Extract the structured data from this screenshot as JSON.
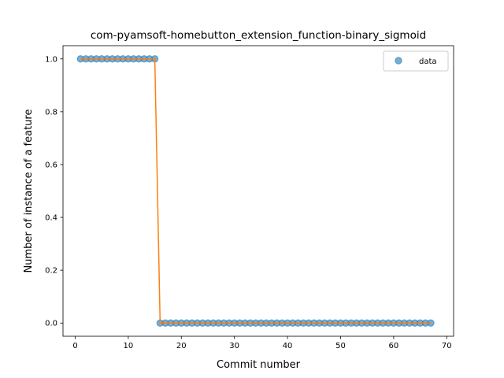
{
  "chart_data": {
    "type": "scatter",
    "title": "com-pyamsoft-homebutton_extension_function-binary_sigmoid",
    "xlabel": "Commit number",
    "ylabel": "Number of instance of a feature",
    "xlim": [
      -2.3,
      71.3
    ],
    "ylim": [
      -0.05,
      1.05
    ],
    "xticks": [
      0,
      10,
      20,
      30,
      40,
      50,
      60,
      70
    ],
    "xtick_labels": [
      "0",
      "10",
      "20",
      "30",
      "40",
      "50",
      "60",
      "70"
    ],
    "yticks": [
      0.0,
      0.2,
      0.4,
      0.6,
      0.8,
      1.0
    ],
    "ytick_labels": [
      "0.0",
      "0.2",
      "0.4",
      "0.6",
      "0.8",
      "1.0"
    ],
    "grid": false,
    "legend": {
      "position": "top-right",
      "entries": [
        "data"
      ]
    },
    "series": [
      {
        "name": "data",
        "kind": "scatter",
        "color": "#1f77b4",
        "x": [
          1,
          2,
          3,
          4,
          5,
          6,
          7,
          8,
          9,
          10,
          11,
          12,
          13,
          14,
          15,
          16,
          17,
          18,
          19,
          20,
          21,
          22,
          23,
          24,
          25,
          26,
          27,
          28,
          29,
          30,
          31,
          32,
          33,
          34,
          35,
          36,
          37,
          38,
          39,
          40,
          41,
          42,
          43,
          44,
          45,
          46,
          47,
          48,
          49,
          50,
          51,
          52,
          53,
          54,
          55,
          56,
          57,
          58,
          59,
          60,
          61,
          62,
          63,
          64,
          65,
          66,
          67
        ],
        "y": [
          1,
          1,
          1,
          1,
          1,
          1,
          1,
          1,
          1,
          1,
          1,
          1,
          1,
          1,
          1,
          0,
          0,
          0,
          0,
          0,
          0,
          0,
          0,
          0,
          0,
          0,
          0,
          0,
          0,
          0,
          0,
          0,
          0,
          0,
          0,
          0,
          0,
          0,
          0,
          0,
          0,
          0,
          0,
          0,
          0,
          0,
          0,
          0,
          0,
          0,
          0,
          0,
          0,
          0,
          0,
          0,
          0,
          0,
          0,
          0,
          0,
          0,
          0,
          0,
          0,
          0,
          0
        ]
      },
      {
        "kind": "line",
        "color": "#ff7f0e",
        "x": [
          1,
          2,
          3,
          4,
          5,
          6,
          7,
          8,
          9,
          10,
          11,
          12,
          13,
          14,
          15,
          16,
          17,
          18,
          19,
          20,
          21,
          22,
          23,
          24,
          25,
          26,
          27,
          28,
          29,
          30,
          31,
          32,
          33,
          34,
          35,
          36,
          37,
          38,
          39,
          40,
          41,
          42,
          43,
          44,
          45,
          46,
          47,
          48,
          49,
          50,
          51,
          52,
          53,
          54,
          55,
          56,
          57,
          58,
          59,
          60,
          61,
          62,
          63,
          64,
          65,
          66,
          67
        ],
        "y": [
          1,
          1,
          1,
          1,
          1,
          1,
          1,
          1,
          1,
          1,
          1,
          1,
          1,
          1,
          1,
          0,
          0,
          0,
          0,
          0,
          0,
          0,
          0,
          0,
          0,
          0,
          0,
          0,
          0,
          0,
          0,
          0,
          0,
          0,
          0,
          0,
          0,
          0,
          0,
          0,
          0,
          0,
          0,
          0,
          0,
          0,
          0,
          0,
          0,
          0,
          0,
          0,
          0,
          0,
          0,
          0,
          0,
          0,
          0,
          0,
          0,
          0,
          0,
          0,
          0,
          0,
          0
        ]
      }
    ]
  }
}
